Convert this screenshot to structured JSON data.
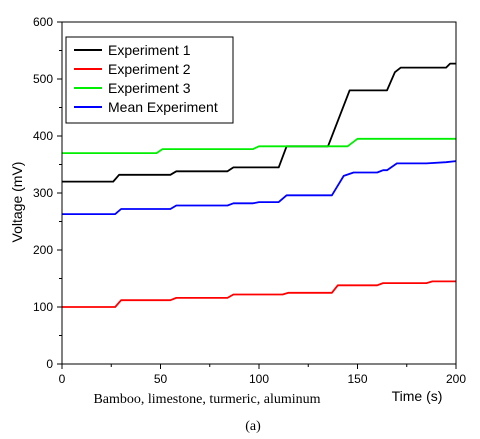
{
  "chart_data": {
    "type": "line",
    "xlabel": "Time (s)",
    "ylabel": "Voltage (mV)",
    "xlim": [
      0,
      200
    ],
    "ylim": [
      0,
      600
    ],
    "x_ticks": [
      0,
      50,
      100,
      150,
      200
    ],
    "y_ticks": [
      0,
      100,
      200,
      300,
      400,
      500,
      600
    ],
    "grid": false,
    "legend_position": "top-left",
    "annotation": "Bamboo, limestone, turmeric, aluminum",
    "caption": "(a)",
    "series": [
      {
        "name": "Experiment 1",
        "color": "#000000",
        "points": [
          [
            0,
            320
          ],
          [
            26,
            320
          ],
          [
            29,
            332
          ],
          [
            55,
            332
          ],
          [
            58,
            338
          ],
          [
            84,
            338
          ],
          [
            87,
            345
          ],
          [
            110,
            345
          ],
          [
            114,
            382
          ],
          [
            135,
            382
          ],
          [
            146,
            480
          ],
          [
            165,
            480
          ],
          [
            169,
            512
          ],
          [
            172,
            520
          ],
          [
            195,
            520
          ],
          [
            197,
            527
          ],
          [
            200,
            527
          ]
        ]
      },
      {
        "name": "Experiment 2",
        "color": "#ff0000",
        "points": [
          [
            0,
            100
          ],
          [
            27,
            100
          ],
          [
            30,
            112
          ],
          [
            55,
            112
          ],
          [
            58,
            116
          ],
          [
            84,
            116
          ],
          [
            87,
            122
          ],
          [
            112,
            122
          ],
          [
            115,
            125
          ],
          [
            137,
            125
          ],
          [
            140,
            138
          ],
          [
            160,
            138
          ],
          [
            163,
            142
          ],
          [
            185,
            142
          ],
          [
            188,
            145
          ],
          [
            200,
            145
          ]
        ]
      },
      {
        "name": "Experiment 3",
        "color": "#00ee00",
        "points": [
          [
            0,
            370
          ],
          [
            48,
            370
          ],
          [
            51,
            377
          ],
          [
            97,
            377
          ],
          [
            100,
            382
          ],
          [
            145,
            382
          ],
          [
            150,
            395
          ],
          [
            200,
            395
          ]
        ]
      },
      {
        "name": "Mean Experiment",
        "color": "#0000ff",
        "points": [
          [
            0,
            263
          ],
          [
            27,
            263
          ],
          [
            30,
            272
          ],
          [
            48,
            272
          ],
          [
            51,
            272
          ],
          [
            55,
            272
          ],
          [
            58,
            278
          ],
          [
            84,
            278
          ],
          [
            87,
            282
          ],
          [
            97,
            282
          ],
          [
            100,
            284
          ],
          [
            110,
            284
          ],
          [
            114,
            296
          ],
          [
            137,
            296
          ],
          [
            143,
            330
          ],
          [
            148,
            336
          ],
          [
            160,
            336
          ],
          [
            163,
            340
          ],
          [
            165,
            340
          ],
          [
            170,
            352
          ],
          [
            185,
            352
          ],
          [
            195,
            354
          ],
          [
            200,
            356
          ]
        ]
      }
    ]
  }
}
